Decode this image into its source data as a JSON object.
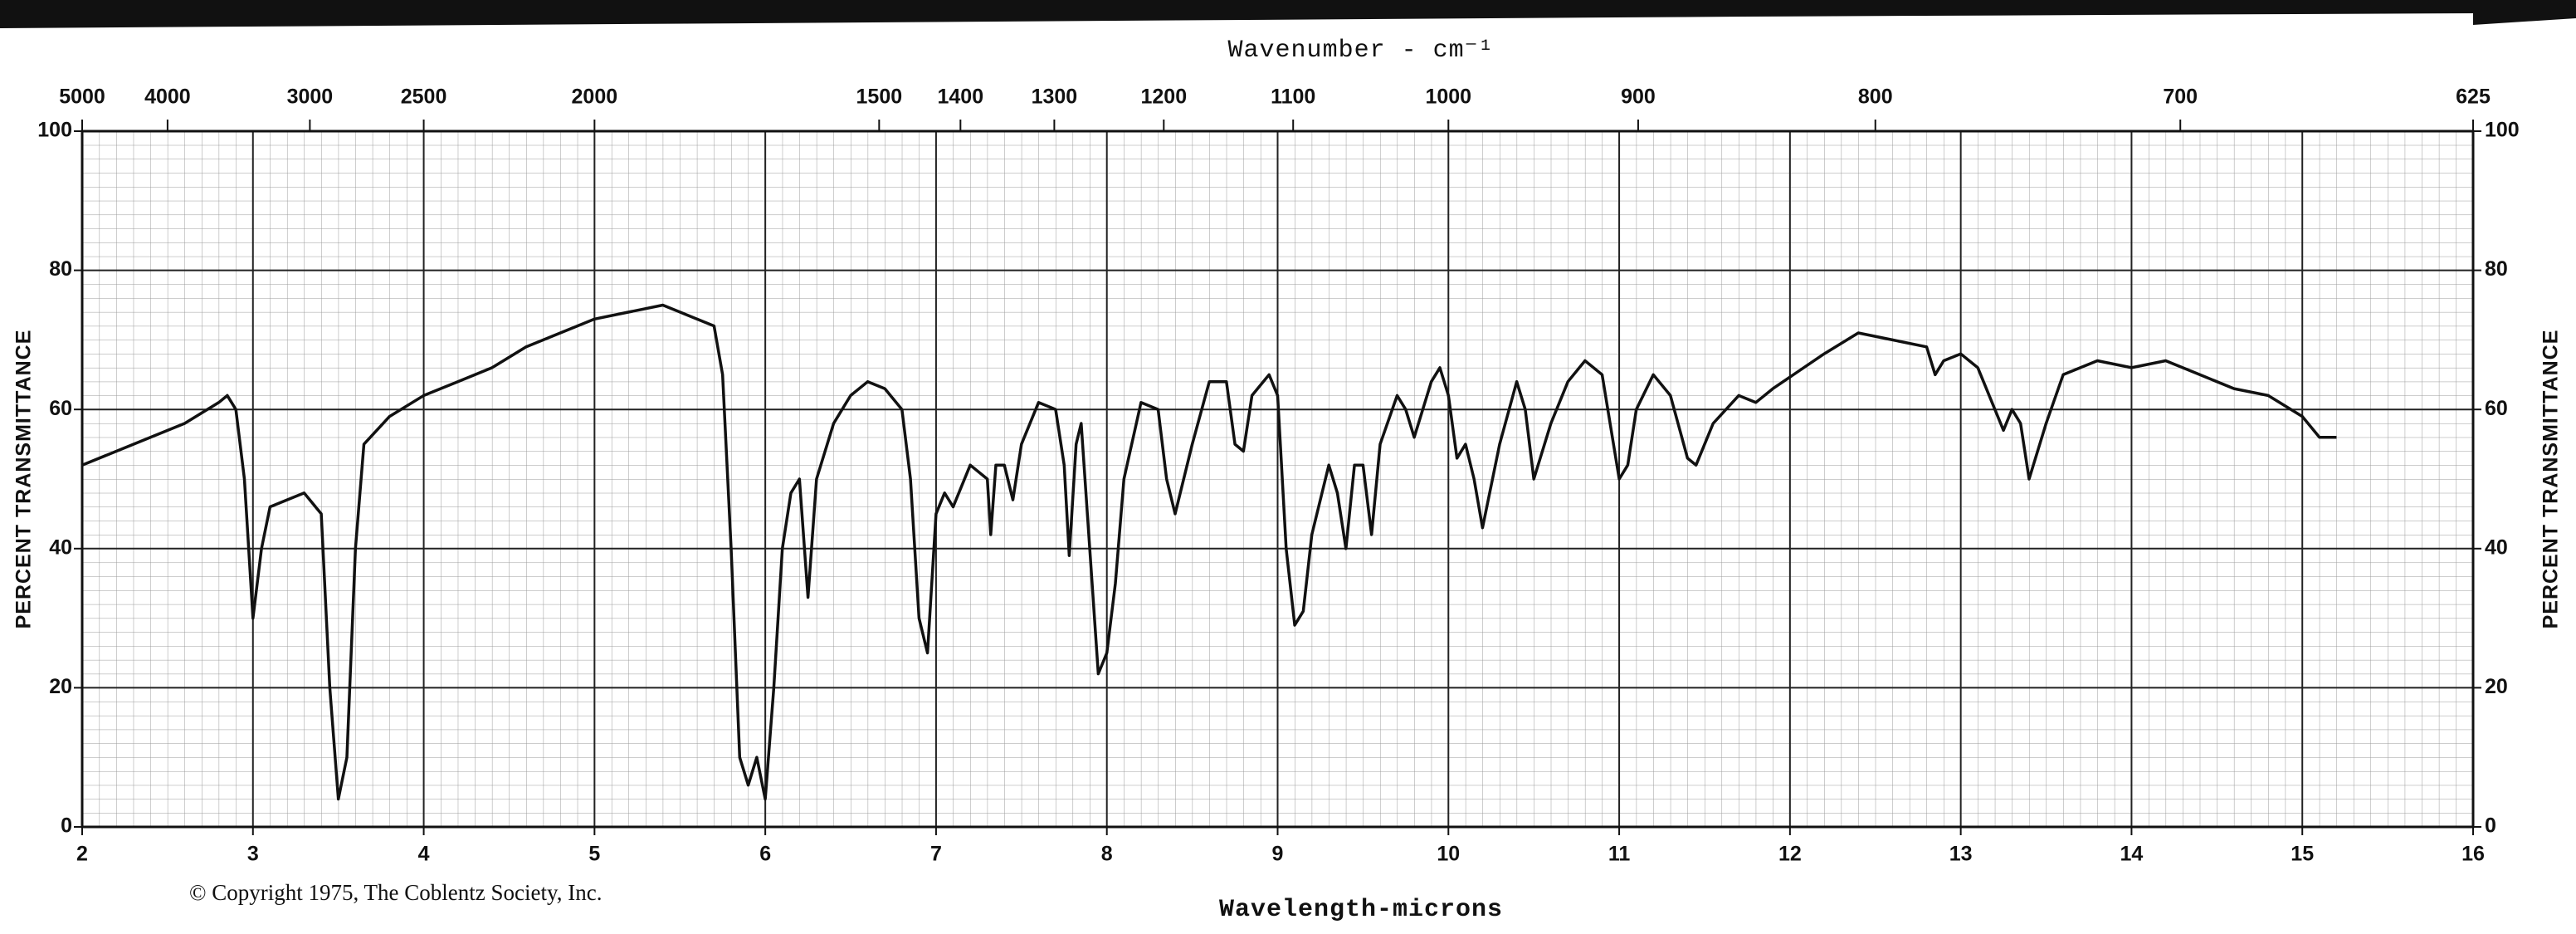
{
  "chart_data": {
    "type": "line",
    "title": "Wavenumber - cm⁻¹",
    "x_label": "Wavelength-microns",
    "y_label": "PERCENT TRANSMITTANCE",
    "y2_label": "PERCENT TRANSMITTANCE",
    "copyright": "© Copyright 1975, The Coblentz Society, Inc.",
    "color": "#111111",
    "grid": true,
    "xlim": [
      2,
      16
    ],
    "xticks": [
      2,
      3,
      4,
      5,
      6,
      7,
      8,
      9,
      10,
      11,
      12,
      13,
      14,
      15,
      16
    ],
    "x2ticks": [
      5000,
      4000,
      3000,
      2500,
      2000,
      1500,
      1400,
      1300,
      1200,
      1100,
      1000,
      900,
      800,
      700,
      625
    ],
    "ylim": [
      0,
      100
    ],
    "yticks": [
      0,
      20,
      40,
      60,
      80,
      100
    ],
    "y2lim": [
      0,
      100
    ],
    "y2ticks": [
      0,
      20,
      40,
      60,
      80,
      100
    ],
    "x": [
      2.0,
      2.2,
      2.4,
      2.6,
      2.8,
      2.85,
      2.9,
      2.95,
      3.0,
      3.05,
      3.1,
      3.2,
      3.3,
      3.4,
      3.45,
      3.5,
      3.55,
      3.6,
      3.65,
      3.8,
      4.0,
      4.2,
      4.4,
      4.6,
      4.8,
      5.0,
      5.2,
      5.4,
      5.5,
      5.6,
      5.7,
      5.75,
      5.8,
      5.85,
      5.9,
      5.95,
      6.0,
      6.05,
      6.1,
      6.15,
      6.2,
      6.25,
      6.3,
      6.4,
      6.5,
      6.6,
      6.7,
      6.8,
      6.85,
      6.9,
      6.95,
      7.0,
      7.05,
      7.1,
      7.2,
      7.3,
      7.32,
      7.35,
      7.4,
      7.45,
      7.5,
      7.6,
      7.7,
      7.75,
      7.78,
      7.82,
      7.85,
      7.9,
      7.95,
      8.0,
      8.05,
      8.1,
      8.2,
      8.3,
      8.35,
      8.4,
      8.5,
      8.6,
      8.7,
      8.75,
      8.8,
      8.85,
      8.95,
      9.0,
      9.05,
      9.1,
      9.15,
      9.2,
      9.3,
      9.35,
      9.4,
      9.45,
      9.5,
      9.55,
      9.6,
      9.7,
      9.75,
      9.8,
      9.9,
      9.95,
      10.0,
      10.05,
      10.1,
      10.15,
      10.2,
      10.3,
      10.4,
      10.45,
      10.5,
      10.6,
      10.7,
      10.8,
      10.9,
      11.0,
      11.05,
      11.1,
      11.2,
      11.3,
      11.4,
      11.45,
      11.55,
      11.7,
      11.8,
      11.9,
      12.2,
      12.4,
      12.6,
      12.8,
      12.85,
      12.9,
      13.0,
      13.1,
      13.2,
      13.25,
      13.3,
      13.35,
      13.4,
      13.5,
      13.6,
      13.8,
      14.0,
      14.2,
      14.4,
      14.6,
      14.8,
      15.0,
      15.1,
      15.2
    ],
    "values": [
      52,
      54,
      56,
      58,
      61,
      62,
      60,
      50,
      30,
      40,
      46,
      47,
      48,
      45,
      20,
      4,
      10,
      40,
      55,
      59,
      62,
      64,
      66,
      69,
      71,
      73,
      74,
      75,
      74,
      73,
      72,
      65,
      40,
      10,
      6,
      10,
      4,
      20,
      40,
      48,
      50,
      33,
      50,
      58,
      62,
      64,
      63,
      60,
      50,
      30,
      25,
      45,
      48,
      46,
      52,
      50,
      42,
      52,
      52,
      47,
      55,
      61,
      60,
      52,
      39,
      55,
      58,
      40,
      22,
      25,
      35,
      50,
      61,
      60,
      50,
      45,
      55,
      64,
      64,
      55,
      54,
      62,
      65,
      62,
      40,
      29,
      31,
      42,
      52,
      48,
      40,
      52,
      52,
      42,
      55,
      62,
      60,
      56,
      64,
      66,
      62,
      53,
      55,
      50,
      43,
      55,
      64,
      60,
      50,
      58,
      64,
      67,
      65,
      50,
      52,
      60,
      65,
      62,
      53,
      52,
      58,
      62,
      61,
      63,
      68,
      71,
      70,
      69,
      65,
      67,
      68,
      66,
      60,
      57,
      60,
      58,
      50,
      58,
      65,
      67,
      66,
      67,
      65,
      63,
      62,
      59,
      56,
      56
    ]
  }
}
